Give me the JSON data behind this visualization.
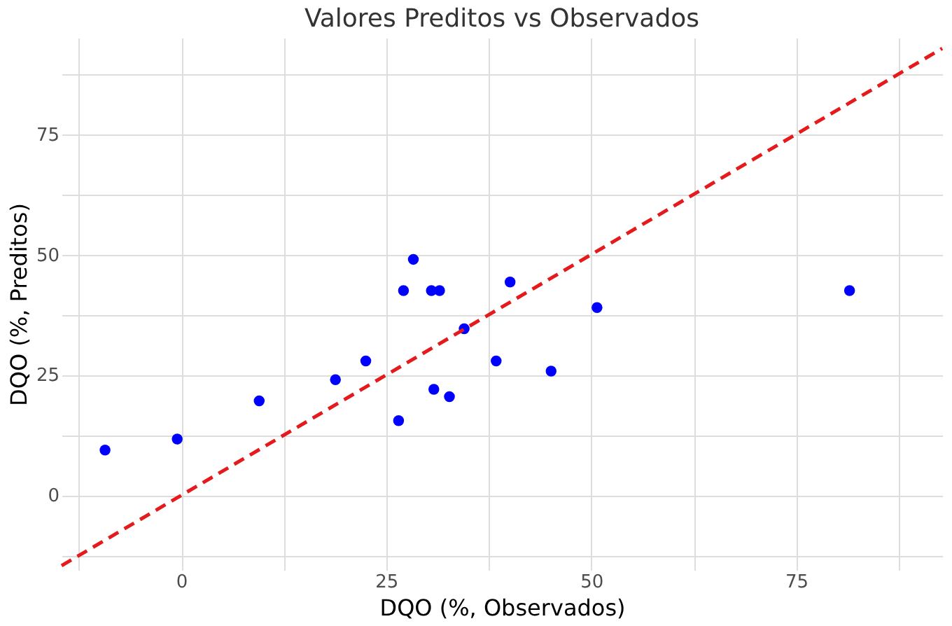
{
  "chart_data": {
    "type": "scatter",
    "title": "Valores Preditos vs Observados",
    "xlabel": "DQO (%, Observados)",
    "ylabel": "DQO (%, Preditos)",
    "x": [
      -9.3,
      -0.5,
      9.5,
      18.8,
      22.5,
      26.5,
      27.1,
      28.3,
      30.5,
      31.5,
      30.8,
      32.7,
      34.5,
      38.4,
      40.1,
      45.1,
      50.7,
      81.5
    ],
    "series": [
      {
        "color": "#0000ff",
        "marker": "circle",
        "values": [
          9.4,
          11.7,
          19.6,
          24.0,
          27.9,
          15.5,
          42.5,
          49.0,
          42.5,
          42.5,
          22.0,
          20.5,
          34.6,
          27.9,
          44.3,
          25.8,
          39.0,
          42.5
        ]
      },
      {
        "type": "line",
        "color": "#e41a1c",
        "line_style": "dashed",
        "x": [
          -14.6,
          92.8
        ],
        "values": [
          -14.6,
          92.8
        ]
      }
    ],
    "xlim": [
      -14.6,
      92.8
    ],
    "ylim": [
      -15.5,
      95
    ],
    "xticks": [
      {
        "value": -12.5,
        "label": null
      },
      0,
      {
        "value": 12.5,
        "label": null
      },
      25,
      {
        "value": 37.5,
        "label": null
      },
      50,
      {
        "value": 62.5,
        "label": null
      },
      75,
      {
        "value": 87.5,
        "label": null
      }
    ],
    "yticks": [
      {
        "value": -12.5,
        "label": null
      },
      0,
      {
        "value": 12.5,
        "label": null
      },
      25,
      {
        "value": 37.5,
        "label": null
      },
      50,
      {
        "value": 62.5,
        "label": null
      },
      75,
      {
        "value": 87.5,
        "label": null
      }
    ],
    "grid": true
  }
}
